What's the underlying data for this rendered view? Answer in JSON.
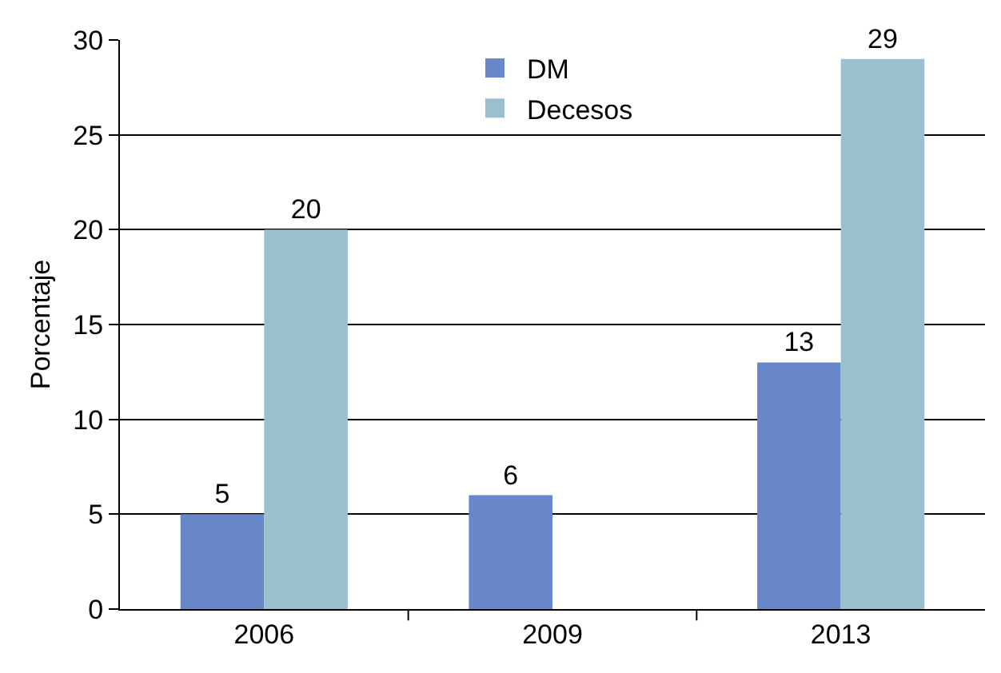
{
  "chart_data": {
    "type": "bar",
    "ylabel": "Porcentaje",
    "categories": [
      "2006",
      "2009",
      "2013"
    ],
    "series": [
      {
        "name": "DM",
        "color": "#6787c8",
        "values": [
          5,
          6,
          13
        ]
      },
      {
        "name": "Decesos",
        "color": "#9bbfcd",
        "values": [
          20,
          null,
          29
        ]
      }
    ],
    "ylim": [
      0,
      30
    ],
    "yticks": [
      0,
      5,
      10,
      15,
      20,
      25,
      30
    ],
    "grid": "y",
    "legend": "top",
    "data_labels": true
  }
}
